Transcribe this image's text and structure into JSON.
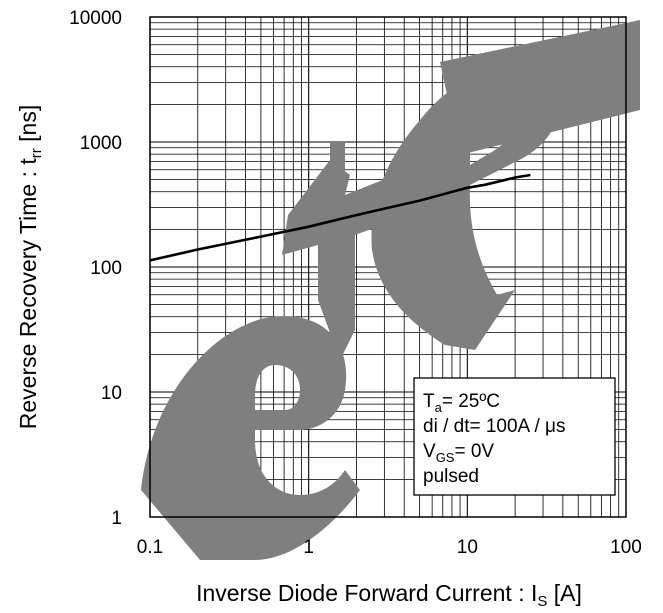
{
  "chart_data": {
    "type": "line",
    "title": "",
    "xscale": "log",
    "yscale": "log",
    "xlim": [
      0.1,
      100
    ],
    "ylim": [
      1,
      10000
    ],
    "x_ticks": [
      "0.1",
      "1",
      "10",
      "100"
    ],
    "y_ticks": [
      "1",
      "10",
      "100",
      "1000",
      "10000"
    ],
    "xlabel": {
      "main": "Inverse Diode Forward Current : I",
      "sub": "S",
      "unit": " [A]"
    },
    "ylabel": {
      "main": "Reverse Recovery Time : t",
      "sub": "rr",
      "unit": " [ns]"
    },
    "grid": true,
    "legend_position": "bottom-right",
    "series": [
      {
        "x": [
          0.1,
          0.2,
          0.5,
          1,
          2,
          5,
          10,
          13,
          20,
          25
        ],
        "y": [
          113,
          138,
          175,
          210,
          260,
          340,
          430,
          455,
          520,
          545
        ]
      }
    ],
    "conditions": [
      {
        "main": "T",
        "sub": "a",
        "rest": "= 25ºC"
      },
      {
        "main": "di / dt= 100A / μs",
        "sub": "",
        "rest": ""
      },
      {
        "main": "V",
        "sub": "GS",
        "rest": "= 0V"
      },
      {
        "main": "pulsed",
        "sub": "",
        "rest": ""
      }
    ],
    "watermark": "Obsolete"
  }
}
